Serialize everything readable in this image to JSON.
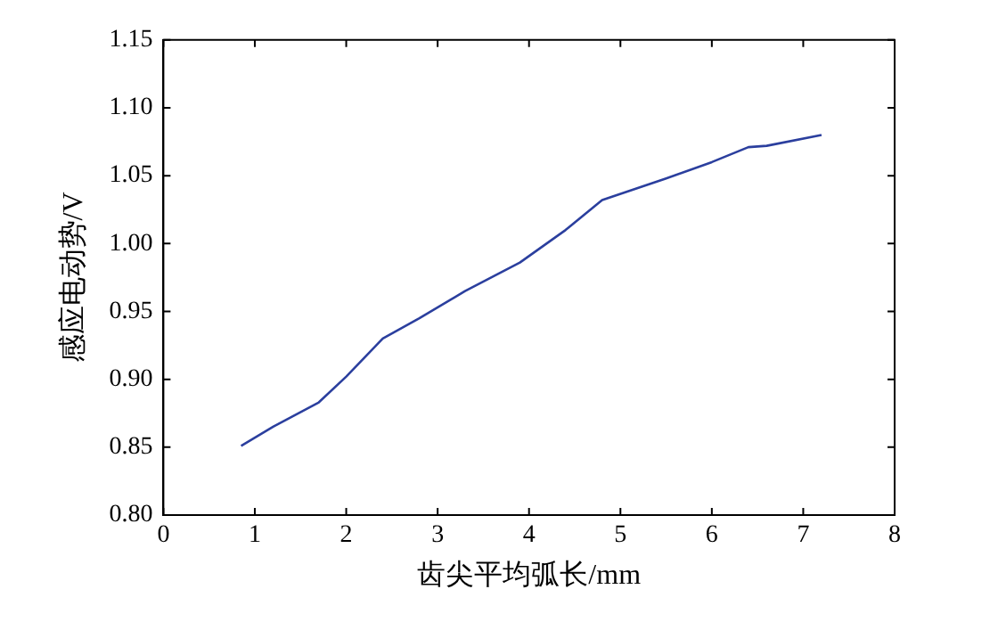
{
  "chart_data": {
    "type": "line",
    "xlabel": "齿尖平均弧长/mm",
    "ylabel": "感应电动势/V",
    "x": [
      0.85,
      1.2,
      1.7,
      2.0,
      2.4,
      2.8,
      3.3,
      3.9,
      4.4,
      4.8,
      5.5,
      6.0,
      6.4,
      6.6,
      7.2
    ],
    "series": [
      {
        "color": "#2b3f9e",
        "values": [
          0.851,
          0.865,
          0.883,
          0.902,
          0.93,
          0.945,
          0.965,
          0.986,
          1.01,
          1.032,
          1.048,
          1.06,
          1.071,
          1.072,
          1.08
        ]
      }
    ],
    "xlim": [
      0,
      8
    ],
    "xticks": [
      0,
      1,
      2,
      3,
      4,
      5,
      6,
      7,
      8
    ],
    "ylim": [
      0.8,
      1.15
    ],
    "yticks": [
      {
        "value": 0.8,
        "label": "0.80"
      },
      {
        "value": 0.85,
        "label": "0.85"
      },
      {
        "value": 0.9,
        "label": "0.90"
      },
      {
        "value": 0.95,
        "label": "0.95"
      },
      {
        "value": 1.0,
        "label": "1.00"
      },
      {
        "value": 1.05,
        "label": "1.05"
      },
      {
        "value": 1.1,
        "label": "1.10"
      },
      {
        "value": 1.15,
        "label": "1.15"
      }
    ],
    "grid": false,
    "legend": false,
    "marker": "none",
    "line_style": "solid"
  }
}
